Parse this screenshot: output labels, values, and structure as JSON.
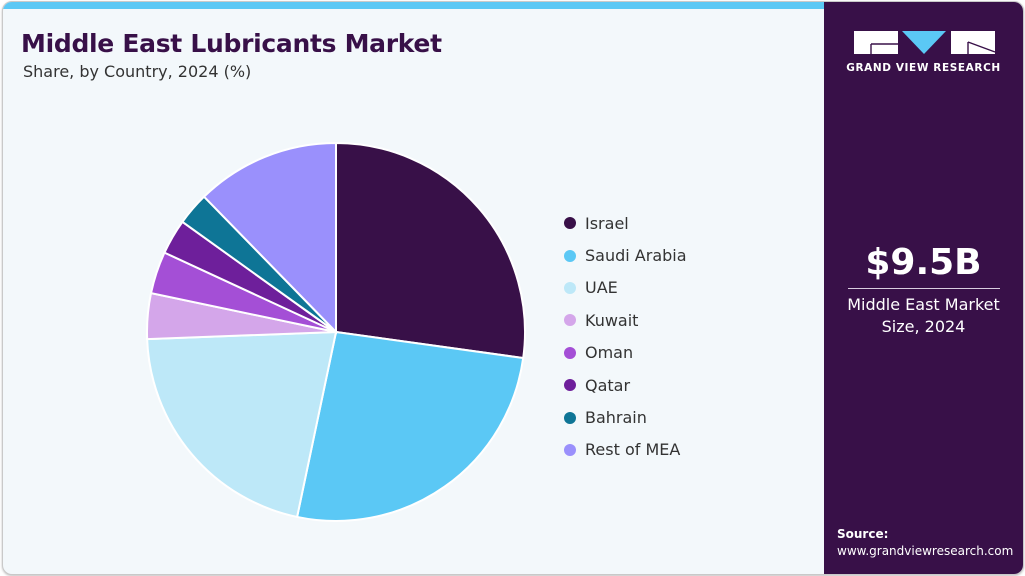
{
  "header": {
    "title": "Middle East Lubricants Market",
    "subtitle": "Share, by Country, 2024 (%)"
  },
  "brand": {
    "name": "GRAND VIEW RESEARCH",
    "colors": {
      "panel": "#381048",
      "accent": "#5bc8f5",
      "background": "#f3f8fb"
    }
  },
  "kpi": {
    "value": "$9.5B",
    "label_line1": "Middle East Market",
    "label_line2": "Size, 2024"
  },
  "source": {
    "label": "Source:",
    "url": "www.grandviewresearch.com"
  },
  "legend": {
    "items": [
      {
        "label": "Israel",
        "color": "#381048"
      },
      {
        "label": "Saudi Arabia",
        "color": "#5bc8f5"
      },
      {
        "label": "UAE",
        "color": "#bde8f8"
      },
      {
        "label": "Kuwait",
        "color": "#d4a6ea"
      },
      {
        "label": "Oman",
        "color": "#a44fd6"
      },
      {
        "label": "Qatar",
        "color": "#6e1f9b"
      },
      {
        "label": "Bahrain",
        "color": "#0e7596"
      },
      {
        "label": "Rest of MEA",
        "color": "#9a90fc"
      }
    ]
  },
  "chart_data": {
    "type": "pie",
    "title": "Middle East Lubricants Market",
    "subtitle": "Share, by Country, 2024 (%)",
    "categories": [
      "Israel",
      "Saudi Arabia",
      "UAE",
      "Kuwait",
      "Oman",
      "Qatar",
      "Bahrain",
      "Rest of MEA"
    ],
    "values": [
      27.2,
      26.1,
      21.1,
      3.9,
      3.6,
      3.0,
      2.8,
      12.3
    ],
    "colors": [
      "#381048",
      "#5bc8f5",
      "#bde8f8",
      "#d4a6ea",
      "#a44fd6",
      "#6e1f9b",
      "#0e7596",
      "#9a90fc"
    ],
    "start_angle": "12 o'clock, clockwise",
    "legend_position": "right",
    "data_labels": false
  }
}
